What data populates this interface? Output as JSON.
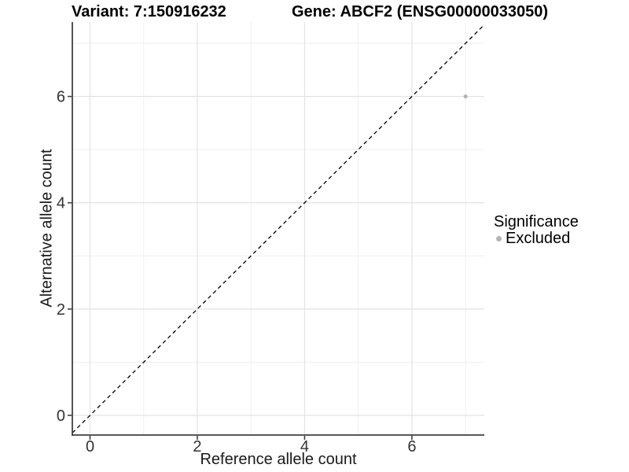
{
  "chart_data": {
    "type": "scatter",
    "titles": {
      "left": "Variant: 7:150916232",
      "right": "Gene: ABCF2 (ENSG00000033050)"
    },
    "xlabel": "Reference allele count",
    "ylabel": "Alternative allele count",
    "xlim": [
      -0.33,
      7.35
    ],
    "ylim": [
      -0.37,
      7.4
    ],
    "x_ticks": [
      0,
      2,
      4,
      6
    ],
    "y_ticks": [
      0,
      2,
      4,
      6
    ],
    "x_minor_gridlines": [
      1,
      3,
      5,
      7
    ],
    "y_minor_gridlines": [
      1,
      3,
      5,
      7
    ],
    "grid": true,
    "points": [
      {
        "x": 7,
        "y": 6,
        "series": "Excluded"
      }
    ],
    "reference_line": {
      "slope": 1,
      "intercept": 0,
      "style": "dashed",
      "color": "#000000"
    },
    "legend": {
      "title": "Significance",
      "position": "right",
      "items": [
        {
          "label": "Excluded",
          "color": "#b4b4b4"
        }
      ]
    },
    "colors": {
      "point": "#b4b4b4",
      "grid_major": "#e3e3e3",
      "grid_minor": "#f0f0f0",
      "axis_line": "#404040",
      "tick_label": "#333333",
      "title": "#000000"
    }
  }
}
